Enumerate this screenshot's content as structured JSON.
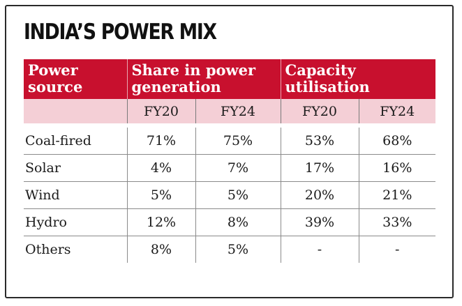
{
  "title": "INDIA’S POWER MIX",
  "table": {
    "headers": {
      "source": [
        "Power",
        "source"
      ],
      "share": [
        "Share in power",
        "generation"
      ],
      "capacity": [
        "Capacity",
        "utilisation"
      ]
    },
    "years": [
      "FY20",
      "FY24",
      "FY20",
      "FY24"
    ],
    "rows": [
      {
        "source": "Coal-fired",
        "values": [
          "71%",
          "75%",
          "53%",
          "68%"
        ]
      },
      {
        "source": "Solar",
        "values": [
          "4%",
          "7%",
          "17%",
          "16%"
        ]
      },
      {
        "source": "Wind",
        "values": [
          "5%",
          "5%",
          "20%",
          "21%"
        ]
      },
      {
        "source": "Hydro",
        "values": [
          "12%",
          "8%",
          "39%",
          "33%"
        ]
      },
      {
        "source": "Others",
        "values": [
          "8%",
          "5%",
          "-",
          "-"
        ]
      }
    ]
  },
  "colors": {
    "header_bg": "#c8102e",
    "subheader_bg": "#f4cfd6"
  }
}
